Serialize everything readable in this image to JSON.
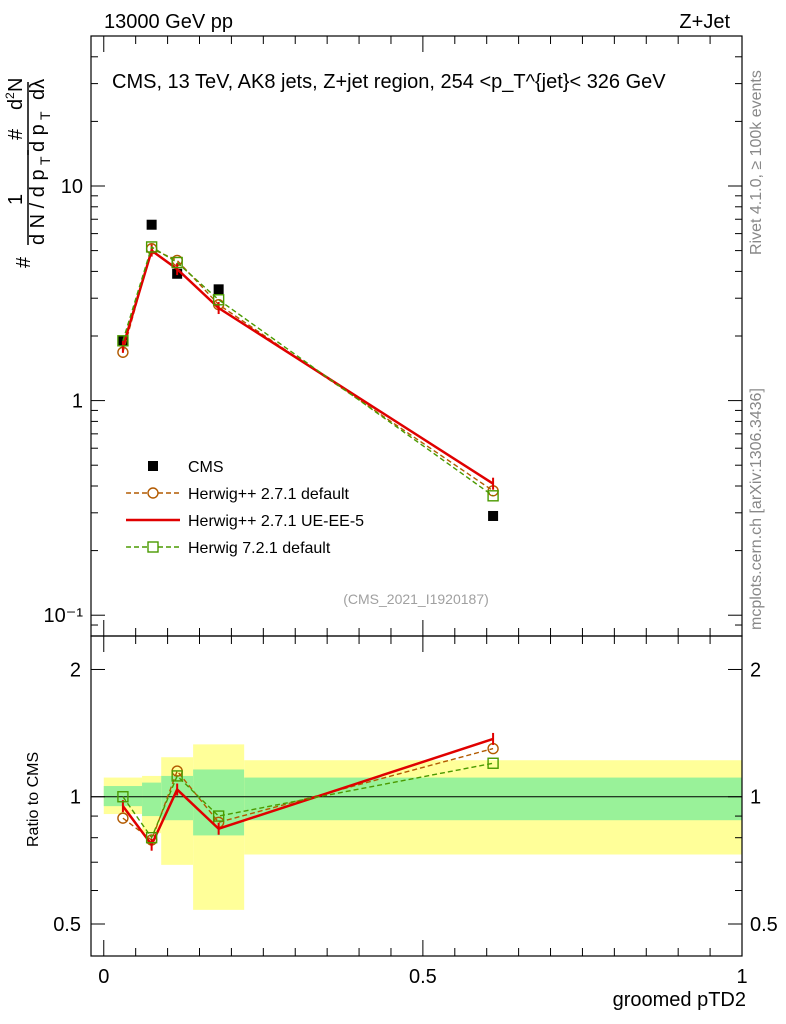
{
  "header": {
    "energy": "13000 GeV pp",
    "process": "Z+Jet"
  },
  "side_notes": {
    "rivet": "Rivet 4.1.0, ≥ 100k events",
    "mcplots": "mcplots.cern.ch [arXiv:1306.3436]"
  },
  "chart_data": [
    {
      "type": "line",
      "panel": "main",
      "title": "CMS, 13 TeV, AK8 jets, Z+jet region, 254 <p_T^{jet}< 326 GeV",
      "ylabel": "1/(dN/dp_T) d²N/(dp_T dλ)",
      "yscale": "log",
      "ylim": [
        0.08,
        50
      ],
      "xlim": [
        -0.02,
        1.0
      ],
      "ytick_labels": [
        "10⁻¹",
        "1",
        "10"
      ],
      "watermark": "(CMS_2021_I1920187)",
      "x": [
        0.03,
        0.075,
        0.115,
        0.18,
        0.61
      ],
      "series": [
        {
          "name": "CMS",
          "style": "data",
          "color": "#000000",
          "values": [
            1.9,
            6.6,
            3.9,
            3.3,
            0.29
          ]
        },
        {
          "name": "Herwig++ 2.7.1 default",
          "style": "dashed-circle",
          "color": "#b25a00",
          "values": [
            1.68,
            5.1,
            4.5,
            2.8,
            0.38
          ]
        },
        {
          "name": "Herwig++ 2.7.1 UE-EE-5",
          "style": "solid",
          "color": "#e00000",
          "values": [
            1.78,
            5.0,
            4.1,
            2.7,
            0.41
          ]
        },
        {
          "name": "Herwig 7.2.1 default",
          "style": "dashed-square",
          "color": "#4a9a00",
          "values": [
            1.9,
            5.2,
            4.4,
            2.95,
            0.36
          ]
        }
      ]
    },
    {
      "type": "line",
      "panel": "ratio",
      "xlabel": "groomed pTD2",
      "ylabel": "Ratio to CMS",
      "yscale": "log",
      "ylim": [
        0.42,
        2.4
      ],
      "ytick_labels": [
        "0.5",
        "1",
        "2"
      ],
      "xtick_labels": [
        "0",
        "0.5",
        "1"
      ],
      "x": [
        0.03,
        0.075,
        0.115,
        0.18,
        0.61
      ],
      "bands": [
        {
          "xmin": 0.0,
          "xmax": 0.06,
          "inner": [
            0.95,
            1.06
          ],
          "outer": [
            0.91,
            1.11
          ]
        },
        {
          "xmin": 0.06,
          "xmax": 0.09,
          "inner": [
            0.9,
            1.08
          ],
          "outer": [
            0.82,
            1.12
          ]
        },
        {
          "xmin": 0.09,
          "xmax": 0.14,
          "inner": [
            0.88,
            1.12
          ],
          "outer": [
            0.69,
            1.24
          ]
        },
        {
          "xmin": 0.14,
          "xmax": 0.22,
          "inner": [
            0.81,
            1.16
          ],
          "outer": [
            0.54,
            1.33
          ]
        },
        {
          "xmin": 0.22,
          "xmax": 1.0,
          "inner": [
            0.88,
            1.11
          ],
          "outer": [
            0.73,
            1.22
          ]
        }
      ],
      "series": [
        {
          "name": "Herwig++ 2.7.1 default",
          "style": "dashed-circle",
          "color": "#b25a00",
          "values": [
            0.89,
            0.79,
            1.15,
            0.87,
            1.3
          ]
        },
        {
          "name": "Herwig++ 2.7.1 UE-EE-5",
          "style": "solid",
          "color": "#e00000",
          "values": [
            0.95,
            0.77,
            1.04,
            0.84,
            1.37
          ]
        },
        {
          "name": "Herwig 7.2.1 default",
          "style": "dashed-square",
          "color": "#4a9a00",
          "values": [
            1.0,
            0.8,
            1.12,
            0.9,
            1.2
          ]
        }
      ]
    }
  ]
}
